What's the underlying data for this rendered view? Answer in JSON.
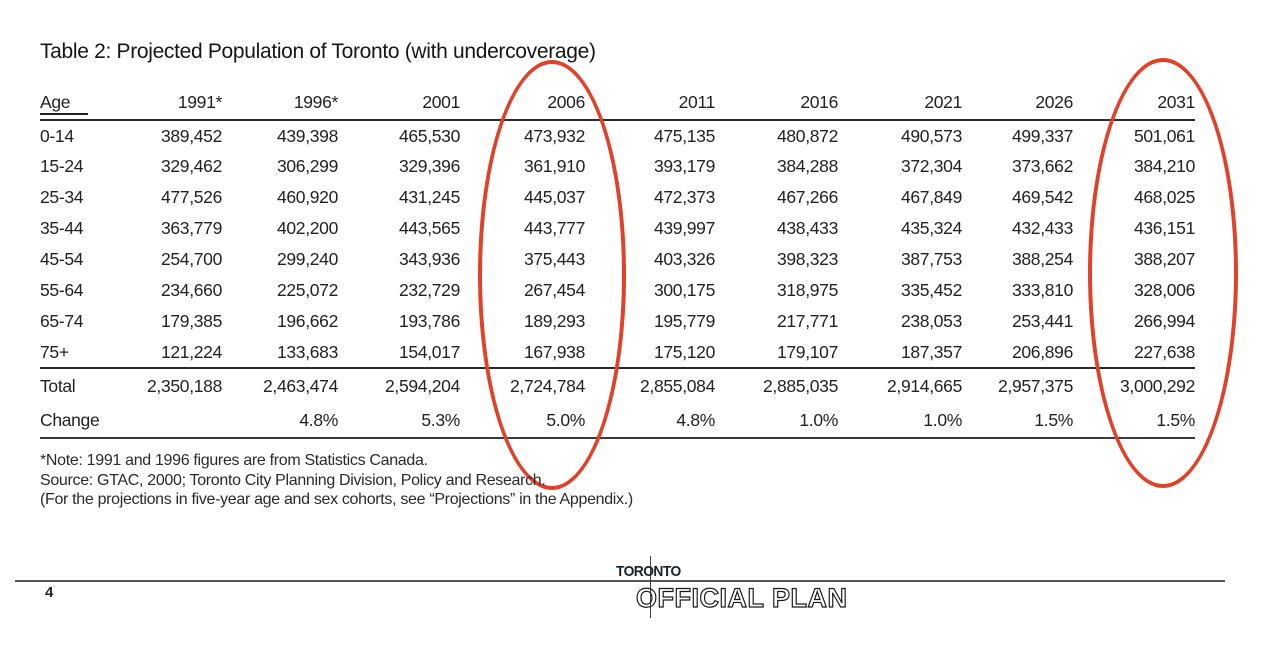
{
  "table": {
    "title": "Table 2: Projected Population of Toronto (with undercoverage)",
    "columns": [
      "Age",
      "1991*",
      "1996*",
      "2001",
      "2006",
      "2011",
      "2016",
      "2021",
      "2026",
      "2031"
    ],
    "rows": [
      {
        "label": "0-14",
        "values": [
          "389,452",
          "439,398",
          "465,530",
          "473,932",
          "475,135",
          "480,872",
          "490,573",
          "499,337",
          "501,061"
        ]
      },
      {
        "label": "15-24",
        "values": [
          "329,462",
          "306,299",
          "329,396",
          "361,910",
          "393,179",
          "384,288",
          "372,304",
          "373,662",
          "384,210"
        ]
      },
      {
        "label": "25-34",
        "values": [
          "477,526",
          "460,920",
          "431,245",
          "445,037",
          "472,373",
          "467,266",
          "467,849",
          "469,542",
          "468,025"
        ]
      },
      {
        "label": "35-44",
        "values": [
          "363,779",
          "402,200",
          "443,565",
          "443,777",
          "439,997",
          "438,433",
          "435,324",
          "432,433",
          "436,151"
        ]
      },
      {
        "label": "45-54",
        "values": [
          "254,700",
          "299,240",
          "343,936",
          "375,443",
          "403,326",
          "398,323",
          "387,753",
          "388,254",
          "388,207"
        ]
      },
      {
        "label": "55-64",
        "values": [
          "234,660",
          "225,072",
          "232,729",
          "267,454",
          "300,175",
          "318,975",
          "335,452",
          "333,810",
          "328,006"
        ]
      },
      {
        "label": "65-74",
        "values": [
          "179,385",
          "196,662",
          "193,786",
          "189,293",
          "195,779",
          "217,771",
          "238,053",
          "253,441",
          "266,994"
        ]
      },
      {
        "label": "75+",
        "values": [
          "121,224",
          "133,683",
          "154,017",
          "167,938",
          "175,120",
          "179,107",
          "187,357",
          "206,896",
          "227,638"
        ]
      }
    ],
    "total_row": {
      "label": "Total",
      "values": [
        "2,350,188",
        "2,463,474",
        "2,594,204",
        "2,724,784",
        "2,855,084",
        "2,885,035",
        "2,914,665",
        "2,957,375",
        "3,000,292"
      ]
    },
    "change_row": {
      "label": "Change",
      "values": [
        "",
        "4.8%",
        "5.3%",
        "5.0%",
        "4.8%",
        "1.0%",
        "1.0%",
        "1.5%",
        "1.5%"
      ]
    }
  },
  "notes": [
    "*Note: 1991 and 1996 figures are from Statistics Canada.",
    "Source: GTAC, 2000; Toronto City Planning Division, Policy and Research.",
    "(For the projections in five-year age and sex cohorts, see “Projections” in the Appendix.)"
  ],
  "annotations": {
    "highlight_color": "#e04128",
    "circled_columns": [
      "2006",
      "2031"
    ]
  },
  "footer": {
    "page_number": "4",
    "logo_top": "TORONTO",
    "logo_bottom": "OFFICIAL PLAN"
  }
}
